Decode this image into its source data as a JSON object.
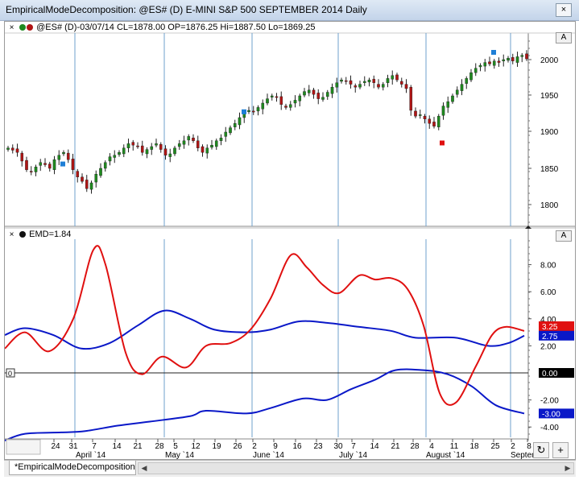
{
  "window": {
    "title": "EmpiricalModeDecomposition: @ES# (D) E-MINI S&P 500 SEPTEMBER 2014 Daily",
    "close_label": "×"
  },
  "price_pane": {
    "header": "@ES# (D)-03/07/14 CL=1878.00 OP=1876.25 Hi=1887.50 Lo=1869.25",
    "close_x": "×",
    "a_label": "A",
    "axis_labels": [
      "2000",
      "1950",
      "1900",
      "1850",
      "1800"
    ],
    "colors": {
      "up": "#1f8a1f",
      "down": "#b01414",
      "marker_blue": "#1e7fd6",
      "marker_red": "#e01010",
      "grid": "#6fa0cc"
    }
  },
  "emd_pane": {
    "header": "EMD=1.84",
    "close_x": "×",
    "a_label": "A",
    "zero_tag": "0",
    "axis_labels": [
      "8.00",
      "6.00",
      "4.00",
      "2.00",
      "-2.00",
      "-4.00"
    ],
    "value_tags": {
      "red": "3.25",
      "upper": "2.75",
      "zero": "0.00",
      "lower": "-3.00"
    },
    "colors": {
      "emd": "#e01010",
      "band": "#0a18c8"
    }
  },
  "time_axis": {
    "days": [
      "24",
      "31",
      "7",
      "14",
      "21",
      "28",
      "5",
      "12",
      "19",
      "26",
      "2",
      "9",
      "16",
      "23",
      "30",
      "7",
      "14",
      "21",
      "28",
      "4",
      "11",
      "18",
      "25",
      "2",
      "8"
    ],
    "months": [
      "April `14",
      "May `14",
      "June `14",
      "July `14",
      "August `14",
      "Septem"
    ]
  },
  "bottom": {
    "tab_label": "*EmpiricalModeDecomposition",
    "refresh_icon": "↻",
    "plus_label": "+"
  }
}
